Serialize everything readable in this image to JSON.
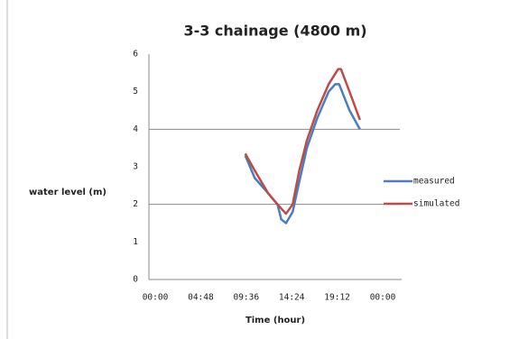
{
  "chart_data": {
    "type": "line",
    "title": "3-3 chainage (4800 m)",
    "x_label": "Time (hour)",
    "y_label": "water level (m)",
    "xlim": [
      0,
      24
    ],
    "xticks": [
      {
        "value": 0,
        "label": "00:00"
      },
      {
        "value": 4.8,
        "label": "04:48"
      },
      {
        "value": 9.6,
        "label": "09:36"
      },
      {
        "value": 14.4,
        "label": "14:24"
      },
      {
        "value": 19.2,
        "label": "19:12"
      },
      {
        "value": 24,
        "label": "00:00"
      }
    ],
    "ylim": [
      0,
      6
    ],
    "yticks": [
      0,
      1,
      2,
      3,
      4,
      5,
      6
    ],
    "ygrid": [
      2,
      4
    ],
    "legend": "right",
    "series": [
      {
        "name": "measured",
        "color": "#4a7ebf",
        "x": [
          9.5,
          10.5,
          11.9,
          12.9,
          13.3,
          13.8,
          14.5,
          15.2,
          16.0,
          17.1,
          18.3,
          19.0,
          19.4,
          20.5,
          21.6
        ],
        "values": [
          3.3,
          2.7,
          2.3,
          2.0,
          1.6,
          1.5,
          1.8,
          2.6,
          3.5,
          4.3,
          5.0,
          5.2,
          5.2,
          4.5,
          4.0
        ]
      },
      {
        "name": "simulated",
        "color": "#be4b48",
        "x": [
          9.5,
          10.5,
          11.9,
          12.9,
          13.8,
          14.5,
          15.2,
          16.0,
          17.1,
          18.3,
          19.3,
          19.6,
          20.5,
          21.6
        ],
        "values": [
          3.35,
          2.9,
          2.3,
          2.0,
          1.75,
          2.0,
          2.9,
          3.7,
          4.5,
          5.2,
          5.6,
          5.6,
          5.0,
          4.25
        ]
      }
    ]
  }
}
